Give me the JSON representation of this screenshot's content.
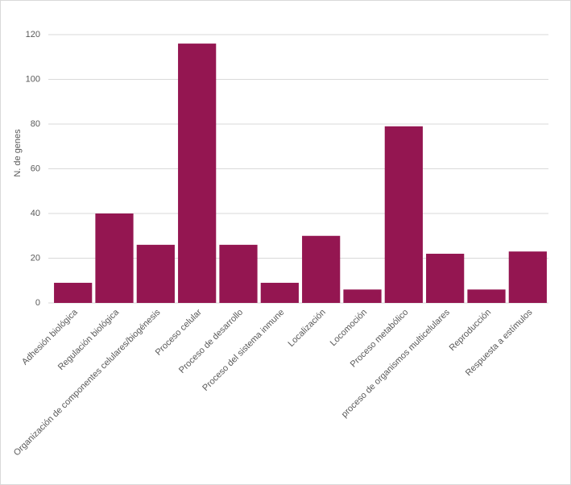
{
  "chart_data": {
    "type": "bar",
    "y_label": "N. de genes",
    "categories": [
      "Adhesión biológica",
      "Regulación biológica",
      "Organización de componentes celulares/biogénesis",
      "Proceso celular",
      "Proceso de desarrollo",
      "Proceso del sistema inmune",
      "Localización",
      "Locomoción",
      "Proceso metabólico",
      "proceso de organismos multicelulares",
      "Reproducción",
      "Respuesta a estímulos"
    ],
    "values": [
      9,
      40,
      26,
      116,
      26,
      9,
      30,
      6,
      79,
      22,
      6,
      23
    ],
    "color": "#941651",
    "ylim": [
      0,
      120
    ],
    "yticks": [
      0,
      20,
      40,
      60,
      80,
      100,
      120
    ],
    "grid": true
  }
}
